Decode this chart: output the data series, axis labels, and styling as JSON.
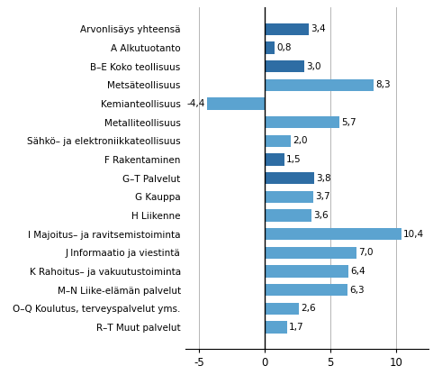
{
  "categories": [
    "R–T Muut palvelut",
    "O–Q Koulutus, terveyspalvelut yms.",
    "M–N Liike-elämän palvelut",
    "K Rahoitus– ja vakuutustoiminta",
    "J Informaatio ja viestintä",
    "I Majoitus– ja ravitsemistoiminta",
    "H Liikenne",
    "G Kauppa",
    "G–T Palvelut",
    "F Rakentaminen",
    "Sähkö– ja elektroniikkateollisuus",
    "Metalliteollisuus",
    "Kemianteollisuus",
    "Metsäteollisuus",
    "B–E Koko teollisuus",
    "A Alkutuotanto",
    "Arvonlisäys yhteensä"
  ],
  "values": [
    1.7,
    2.6,
    6.3,
    6.4,
    7.0,
    10.4,
    3.6,
    3.7,
    3.8,
    1.5,
    2.0,
    5.7,
    -4.4,
    8.3,
    3.0,
    0.8,
    3.4
  ],
  "colors": [
    "#5BA3D0",
    "#5BA3D0",
    "#5BA3D0",
    "#5BA3D0",
    "#5BA3D0",
    "#5BA3D0",
    "#5BA3D0",
    "#5BA3D0",
    "#2E6DA4",
    "#2E6DA4",
    "#5BA3D0",
    "#5BA3D0",
    "#5BA3D0",
    "#5BA3D0",
    "#2E6DA4",
    "#2E6DA4",
    "#2E6DA4"
  ],
  "xlim": [
    -6,
    12.5
  ],
  "xticks": [
    -5,
    0,
    5,
    10
  ],
  "value_label_fontsize": 7.5,
  "category_fontsize": 7.5,
  "bar_height": 0.65
}
